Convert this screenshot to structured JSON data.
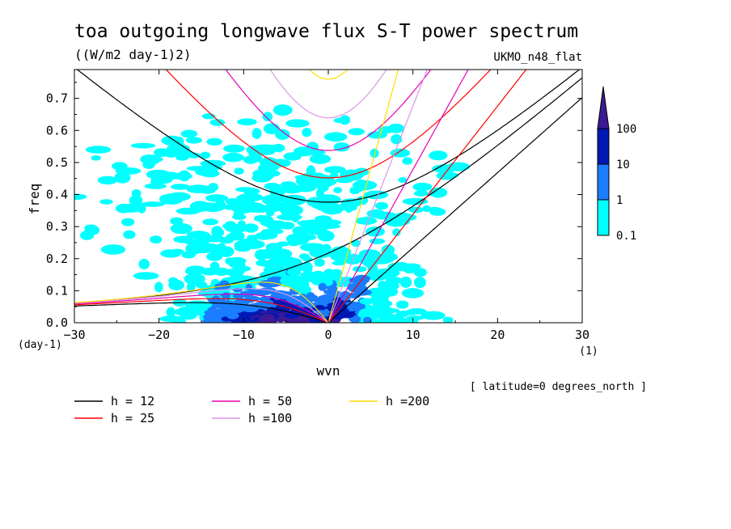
{
  "chart_data": {
    "type": "heatmap",
    "title": "toa outgoing longwave flux S-T power spectrum",
    "subtitle": "((W/m2 day-1)2)",
    "model_label": "UKMO_n48_flat",
    "xlabel": "wvn",
    "xunit": "(1)",
    "ylabel": "freq",
    "yunit": "(day-1)",
    "xlim": [
      -30,
      30
    ],
    "ylim": [
      0,
      0.79
    ],
    "x_ticks": [
      -30,
      -20,
      -10,
      0,
      10,
      20,
      30
    ],
    "y_ticks": [
      "0.0",
      "0.1",
      "0.2",
      "0.3",
      "0.4",
      "0.5",
      "0.6",
      "0.7"
    ],
    "annotation": "[ latitude=0 degrees_north ]",
    "colorbar": {
      "levels": [
        "0.1",
        "1",
        "10",
        "100"
      ],
      "colors": [
        "#00ffff",
        "#1a7dff",
        "#0019b4",
        "#3c1996"
      ]
    },
    "dispersion_curves": [
      {
        "label": "h = 12",
        "h": 12,
        "color": "#000000"
      },
      {
        "label": "h = 25",
        "h": 25,
        "color": "#ff0000"
      },
      {
        "label": "h = 50",
        "h": 50,
        "color": "#e600b4"
      },
      {
        "label": "h =100",
        "h": 100,
        "color": "#dc96e6"
      },
      {
        "label": "h =200",
        "h": 200,
        "color": "#ffdc00"
      }
    ]
  }
}
